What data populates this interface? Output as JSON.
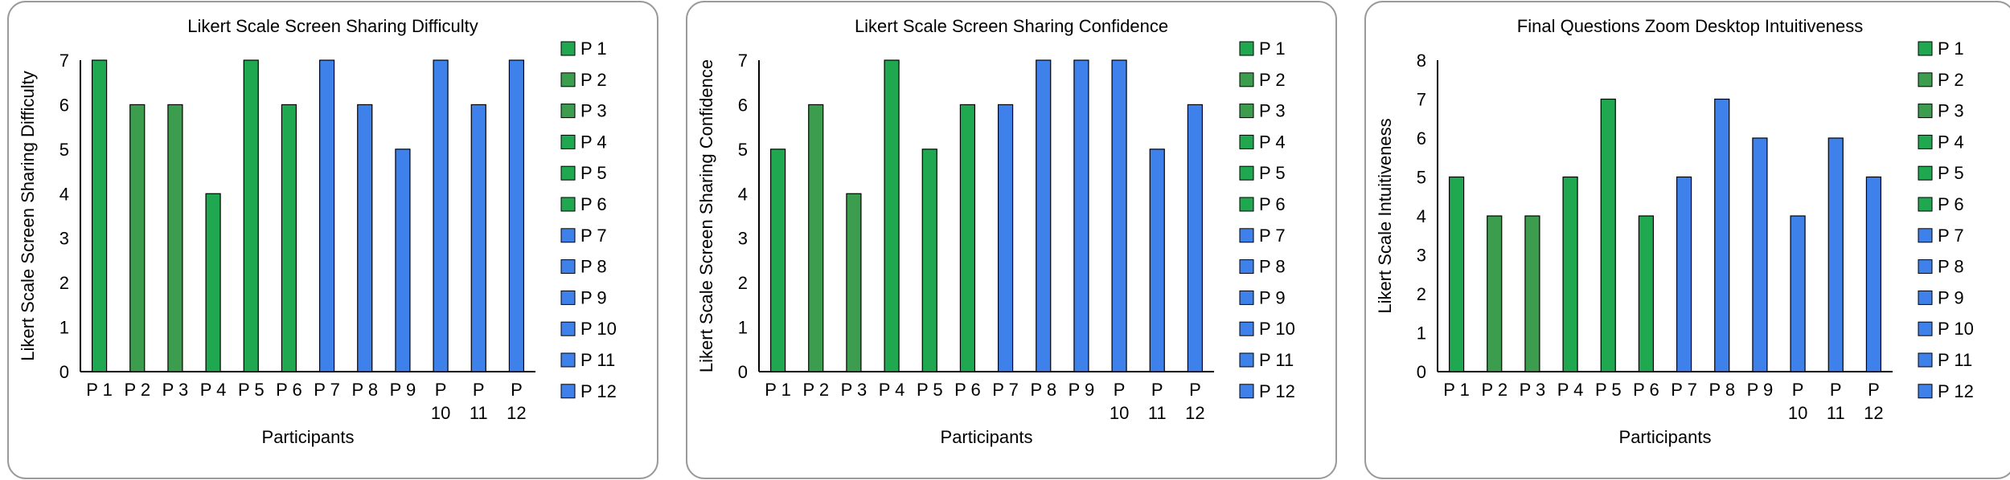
{
  "colors": {
    "p1": "#1fa84f",
    "p2": "#3c9d4e",
    "p3": "#3c9d4e",
    "p4": "#1fa84f",
    "p5": "#1fa84f",
    "p6": "#1fa84f",
    "p7": "#3f81ea",
    "p8": "#3f81ea",
    "p9": "#3f81ea",
    "p10": "#3f81ea",
    "p11": "#3f81ea",
    "p12": "#3f81ea",
    "axis": "#000000",
    "frame": "#9a9a9a"
  },
  "chart_data": [
    {
      "type": "bar",
      "title": "Likert Scale Screen Sharing Difficulty",
      "xlabel": "Participants",
      "ylabel": "Likert Scale Screen Sharing Difficulty",
      "ylim": [
        0,
        7
      ],
      "yticks": [
        "0",
        "1",
        "2",
        "3",
        "4",
        "5",
        "6",
        "7"
      ],
      "categories": [
        "P 1",
        "P 2",
        "P 3",
        "P 4",
        "P 5",
        "P 6",
        "P 7",
        "P 8",
        "P 9",
        "P 10",
        "P 11",
        "P 12"
      ],
      "values": [
        7,
        6,
        6,
        4,
        7,
        6,
        7,
        6,
        5,
        7,
        6,
        7
      ],
      "legend": [
        "P 1",
        "P 2",
        "P 3",
        "P 4",
        "P 5",
        "P 6",
        "P 7",
        "P 8",
        "P 9",
        "P 10",
        "P 11",
        "P 12"
      ],
      "legend_position": "right",
      "grid": false
    },
    {
      "type": "bar",
      "title": "Likert Scale Screen Sharing Confidence",
      "xlabel": "Participants",
      "ylabel": "Likert Scale Screen Sharing Confidence",
      "ylim": [
        0,
        7
      ],
      "yticks": [
        "0",
        "1",
        "2",
        "3",
        "4",
        "5",
        "6",
        "7"
      ],
      "categories": [
        "P 1",
        "P 2",
        "P 3",
        "P 4",
        "P 5",
        "P 6",
        "P 7",
        "P 8",
        "P 9",
        "P 10",
        "P 11",
        "P 12"
      ],
      "values": [
        5,
        6,
        4,
        7,
        5,
        6,
        6,
        7,
        7,
        7,
        5,
        6
      ],
      "legend": [
        "P 1",
        "P 2",
        "P 3",
        "P 4",
        "P 5",
        "P 6",
        "P 7",
        "P 8",
        "P 9",
        "P 10",
        "P 11",
        "P 12"
      ],
      "legend_position": "right",
      "grid": false
    },
    {
      "type": "bar",
      "title": "Final Questions Zoom Desktop Intuitiveness",
      "xlabel": "Participants",
      "ylabel": "Likert Scale Intuitiveness",
      "ylim": [
        0,
        8
      ],
      "yticks": [
        "0",
        "1",
        "2",
        "3",
        "4",
        "5",
        "6",
        "7",
        "8"
      ],
      "categories": [
        "P 1",
        "P 2",
        "P 3",
        "P 4",
        "P 5",
        "P 6",
        "P 7",
        "P 8",
        "P 9",
        "P 10",
        "P 11",
        "P 12"
      ],
      "values": [
        5,
        4,
        4,
        5,
        7,
        4,
        5,
        7,
        6,
        4,
        6,
        5
      ],
      "legend": [
        "P 1",
        "P 2",
        "P 3",
        "P 4",
        "P 5",
        "P 6",
        "P 7",
        "P 8",
        "P 9",
        "P 10",
        "P 11",
        "P 12"
      ],
      "legend_position": "right",
      "grid": false
    }
  ]
}
